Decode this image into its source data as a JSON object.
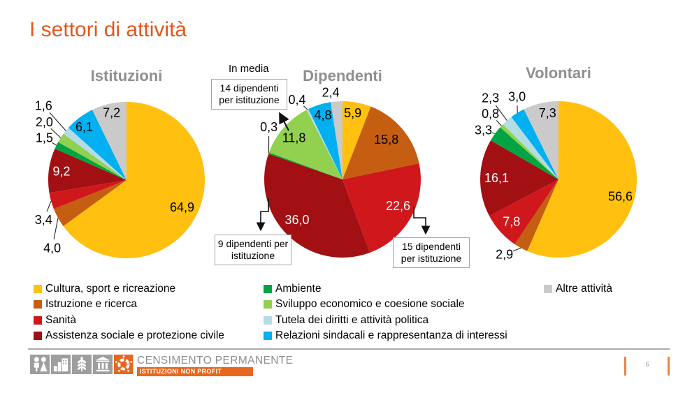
{
  "slide": {
    "title": "I settori di attività",
    "page_number": "6"
  },
  "chart_data": [
    {
      "type": "pie",
      "title": "Istituzioni",
      "radius": 112,
      "slices": [
        {
          "label": "Cultura, sport e ricreazione",
          "value": 64.9,
          "color": "#FFC010",
          "placement": "in",
          "leader": false,
          "label_at": [
            0.71,
            0.35
          ]
        },
        {
          "label": "Istruzione e ricerca",
          "value": 4.0,
          "color": "#C55E11",
          "placement": "out",
          "leader": true,
          "label_at": [
            -0.95,
            0.87
          ]
        },
        {
          "label": "Sanità",
          "value": 3.4,
          "color": "#D0181C",
          "placement": "out",
          "leader": true,
          "label_at": [
            -1.06,
            0.51
          ]
        },
        {
          "label": "Assistenza sociale e protezione civile",
          "value": 9.2,
          "color": "#A21014",
          "placement": "in",
          "leader": false,
          "label_at": [
            -0.83,
            -0.11
          ]
        },
        {
          "label": "Ambiente",
          "value": 1.5,
          "color": "#00A443",
          "placement": "out",
          "leader": true,
          "label_at": [
            -1.05,
            -0.54
          ]
        },
        {
          "label": "Sviluppo economico e coesione sociale",
          "value": 2.0,
          "color": "#92D050",
          "placement": "out",
          "leader": true,
          "label_at": [
            -1.05,
            -0.74
          ]
        },
        {
          "label": "Tutela dei diritti e attività politica",
          "value": 1.6,
          "color": "#B4DCE6",
          "placement": "out",
          "leader": true,
          "label_at": [
            -1.06,
            -0.95
          ]
        },
        {
          "label": "Relazioni sindacali e rappresentanza di interessi",
          "value": 6.1,
          "color": "#00B0F0",
          "placement": "in",
          "leader": false,
          "label_at": [
            -0.54,
            -0.68
          ]
        },
        {
          "label": "Altre attività",
          "value": 7.2,
          "color": "#CBCACA",
          "placement": "in",
          "leader": false,
          "label_at": [
            -0.19,
            -0.86
          ]
        }
      ]
    },
    {
      "type": "pie",
      "title": "Dipendenti",
      "radius": 112,
      "slices": [
        {
          "label": "Cultura, sport e ricreazione",
          "value": 5.9,
          "color": "#FFC010",
          "placement": "in",
          "leader": false,
          "label_at": [
            0.13,
            -0.85
          ]
        },
        {
          "label": "Istruzione e ricerca",
          "value": 15.8,
          "color": "#C55E11",
          "placement": "in",
          "leader": false,
          "label_at": [
            0.56,
            -0.51
          ]
        },
        {
          "label": "Sanità",
          "value": 22.6,
          "color": "#D0181C",
          "placement": "in",
          "leader": false,
          "label_at": [
            0.71,
            0.34
          ]
        },
        {
          "label": "Assistenza sociale e protezione civile",
          "value": 36.0,
          "color": "#A21014",
          "placement": "in",
          "leader": false,
          "label_at": [
            -0.58,
            0.52
          ]
        },
        {
          "label": "Ambiente",
          "value": 0.3,
          "color": "#00A443",
          "placement": "out",
          "leader": true,
          "label_at": [
            -0.94,
            -0.67
          ]
        },
        {
          "label": "Sviluppo economico e coesione sociale",
          "value": 11.8,
          "color": "#92D050",
          "placement": "in",
          "leader": false,
          "label_at": [
            -0.62,
            -0.53
          ]
        },
        {
          "label": "Tutela dei diritti e attività politica",
          "value": 0.4,
          "color": "#B4DCE6",
          "placement": "out",
          "leader": true,
          "label_at": [
            -0.58,
            -1.02
          ]
        },
        {
          "label": "Relazioni sindacali e rappresentanza di interessi",
          "value": 4.8,
          "color": "#00B0F0",
          "placement": "in",
          "leader": false,
          "label_at": [
            -0.25,
            -0.82
          ]
        },
        {
          "label": "Altre attività",
          "value": 2.4,
          "color": "#CBCACA",
          "placement": "out",
          "leader": false,
          "label_at": [
            -0.15,
            -1.11
          ]
        }
      ],
      "annotations": {
        "note": "In media",
        "callouts": [
          {
            "text": "14 dipendenti per istituzione",
            "target": "Sviluppo economico e coesione sociale"
          },
          {
            "text": "9 dipendenti per istituzione",
            "target": "Assistenza sociale e protezione civile"
          },
          {
            "text": "15 dipendenti per istituzione",
            "target": "Sanità"
          }
        ]
      }
    },
    {
      "type": "pie",
      "title": "Volontari",
      "radius": 112,
      "slices": [
        {
          "label": "Cultura, sport e ricreazione",
          "value": 56.6,
          "color": "#FFC010",
          "placement": "in",
          "leader": false,
          "label_at": [
            0.79,
            0.22
          ]
        },
        {
          "label": "Istruzione e ricerca",
          "value": 2.9,
          "color": "#C55E11",
          "placement": "out",
          "leader": true,
          "label_at": [
            -0.69,
            0.96
          ]
        },
        {
          "label": "Sanità",
          "value": 7.8,
          "color": "#D0181C",
          "placement": "in",
          "leader": false,
          "label_at": [
            -0.6,
            0.54
          ]
        },
        {
          "label": "Assistenza sociale e protezione civile",
          "value": 16.1,
          "color": "#A21014",
          "placement": "in",
          "leader": false,
          "label_at": [
            -0.79,
            -0.02
          ]
        },
        {
          "label": "Ambiente",
          "value": 3.3,
          "color": "#00A443",
          "placement": "out",
          "leader": true,
          "label_at": [
            -0.96,
            -0.63
          ]
        },
        {
          "label": "Sviluppo economico e coesione sociale",
          "value": 0.8,
          "color": "#92D050",
          "placement": "out",
          "leader": true,
          "label_at": [
            -0.87,
            -0.84
          ]
        },
        {
          "label": "Tutela dei diritti e attività politica",
          "value": 2.3,
          "color": "#B4DCE6",
          "placement": "out",
          "leader": true,
          "label_at": [
            -0.87,
            -1.04
          ]
        },
        {
          "label": "Relazioni sindacali e rappresentanza di interessi",
          "value": 3.0,
          "color": "#00B0F0",
          "placement": "out",
          "leader": true,
          "label_at": [
            -0.53,
            -1.06
          ]
        },
        {
          "label": "Altre attività",
          "value": 7.3,
          "color": "#CBCACA",
          "placement": "in",
          "leader": false,
          "label_at": [
            -0.14,
            -0.85
          ]
        }
      ]
    }
  ],
  "legend": {
    "columns": [
      {
        "items": [
          {
            "label": "Cultura, sport e ricreazione",
            "color": "#FFC010"
          },
          {
            "label": "Istruzione e ricerca",
            "color": "#C55E11"
          },
          {
            "label": "Sanità",
            "color": "#D0181C"
          },
          {
            "label": "Assistenza sociale e protezione civile",
            "color": "#A21014"
          }
        ]
      },
      {
        "items": [
          {
            "label": "Ambiente",
            "color": "#00A443"
          },
          {
            "label": "Sviluppo economico e coesione sociale",
            "color": "#92D050"
          },
          {
            "label": "Tutela dei diritti e attività politica",
            "color": "#B4DCE6"
          },
          {
            "label": "Relazioni sindacali e rappresentanza di interessi",
            "color": "#00B0F0"
          }
        ]
      },
      {
        "items": [
          {
            "label": "Altre attività",
            "color": "#CBCACA"
          }
        ]
      }
    ]
  },
  "footer": {
    "brand_title": "CENSIMENTO PERMANENTE",
    "brand_subtitle": "ISTITUZIONI NON PROFIT",
    "icons": [
      "population-icon",
      "industry-icon",
      "agriculture-icon",
      "institutions-icon",
      "nonprofit-icon"
    ]
  },
  "colors": {
    "accent_orange": "#E2571C",
    "heading_gray": "#8F8F8F",
    "footer_icon_gray": "#9E9E9E",
    "footer_orange": "#E8671E"
  }
}
